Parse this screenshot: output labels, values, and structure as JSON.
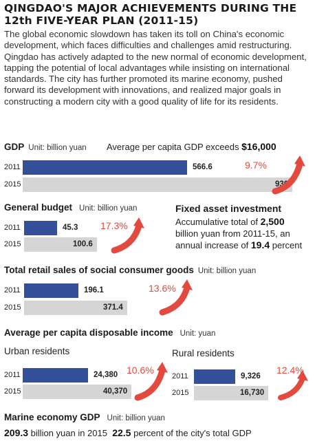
{
  "title": "QINGDAO'S MAJOR ACHIEVEMENTS DURING THE 12th FIVE-YEAR PLAN (2011-15)",
  "intro": "The global economic slowdown has taken its toll on China's economic development, which faces difficulties and challenges amid restructuring. Qingdao has actively adapted to the new normal of economic development, tapping the potential of local advantages while insisting on international standards. The city has further promoted its marine economy, pushed forward its development with innovations, and realized major goals in constructing a modern city with a good quality of life for its residents.",
  "colors": {
    "bar_2011": "#34509a",
    "bar_2015": "#d5d5d5",
    "growth": "#e34a3f"
  },
  "gdp": {
    "label": "GDP",
    "unit": "Unit: billion yuan",
    "note_prefix": "Average per capita GDP exceeds",
    "note_value": "$16,000",
    "growth": "9.7%"
  },
  "budget": {
    "label": "General budget",
    "unit": "Unit: billion yuan",
    "growth": "17.3%"
  },
  "fixed": {
    "label": "Fixed asset investment",
    "line1_prefix": "Accumulative total of",
    "line1_value": "2,500",
    "line2": "billion yuan from 2011-15, an",
    "line3_prefix": "annual increase of",
    "line3_value": "19.4",
    "line3_suffix": "percent"
  },
  "retail": {
    "label": "Total retail sales of social consumer goods",
    "unit": "Unit: billion yuan",
    "growth": "13.6%"
  },
  "income": {
    "label": "Average per capita disposable income",
    "unit": "Unit: yuan",
    "urban_label": "Urban residents",
    "rural_label": "Rural residents",
    "urban_growth": "10.6%",
    "rural_growth": "12.4%"
  },
  "marine": {
    "label": "Marine economy GDP",
    "unit": "Unit: billion yuan",
    "value": "209.3",
    "text1": "billion yuan in 2015",
    "pct": "22.5",
    "text2": "percent of the city's total GDP"
  },
  "chart_data": [
    {
      "type": "bar",
      "title": "GDP",
      "unit": "billion yuan",
      "categories": [
        "2011",
        "2015"
      ],
      "values": [
        566.6,
        930
      ],
      "labels": [
        "566.6",
        "930"
      ],
      "annual_growth": "9.7%"
    },
    {
      "type": "bar",
      "title": "General budget",
      "unit": "billion yuan",
      "categories": [
        "2011",
        "2015"
      ],
      "values": [
        45.3,
        100.6
      ],
      "labels": [
        "45.3",
        "100.6"
      ],
      "annual_growth": "17.3%"
    },
    {
      "type": "bar",
      "title": "Total retail sales of social consumer goods",
      "unit": "billion yuan",
      "categories": [
        "2011",
        "2015"
      ],
      "values": [
        196.1,
        371.4
      ],
      "labels": [
        "196.1",
        "371.4"
      ],
      "annual_growth": "13.6%"
    },
    {
      "type": "bar",
      "title": "Urban residents",
      "unit": "yuan",
      "categories": [
        "2011",
        "2015"
      ],
      "values": [
        24380,
        40370
      ],
      "labels": [
        "24,380",
        "40,370"
      ],
      "annual_growth": "10.6%"
    },
    {
      "type": "bar",
      "title": "Rural residents",
      "unit": "yuan",
      "categories": [
        "2011",
        "2015"
      ],
      "values": [
        9326,
        16730
      ],
      "labels": [
        "9,326",
        "16,730"
      ],
      "annual_growth": "12.4%"
    }
  ]
}
